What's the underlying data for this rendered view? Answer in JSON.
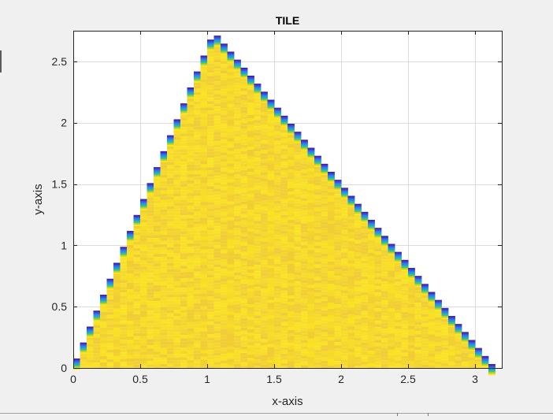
{
  "figure": {
    "background": "#f0f0f0"
  },
  "chart_data": {
    "type": "heatmap",
    "title": "TILE",
    "xlabel": "x-axis",
    "ylabel": "y-axis",
    "xlim": [
      0,
      3.2
    ],
    "ylim": [
      0,
      2.75
    ],
    "xticks": [
      0,
      0.5,
      1,
      1.5,
      2,
      2.5,
      3
    ],
    "xtick_labels": [
      "0",
      "0.5",
      "1",
      "1.5",
      "2",
      "2.5",
      "3"
    ],
    "yticks": [
      0,
      0.5,
      1,
      1.5,
      2,
      2.5
    ],
    "ytick_labels": [
      "0",
      "0.5",
      "1",
      "1.5",
      "2",
      "2.5"
    ],
    "grid": true,
    "colormap": "parula",
    "shape": {
      "description_values": "filled triangle region",
      "vertices": [
        [
          0,
          0
        ],
        [
          1.05,
          2.73
        ],
        [
          3.14,
          0
        ]
      ]
    },
    "bin_width": 0.05,
    "interior_value": "high (yellow)",
    "edge_gradient": [
      "#fbe51f",
      "#b5d22a",
      "#49c081",
      "#1ea9c9",
      "#2586e8",
      "#3e4fe6",
      "#3a2bb0"
    ],
    "colors": {
      "interior": "#f6d92c",
      "interior_variant": "#f2cf32",
      "edge_dark": "#3a2bb0",
      "axes_background": "#ffffff",
      "grid": "#dcdcdc",
      "axis": "#262626"
    }
  }
}
